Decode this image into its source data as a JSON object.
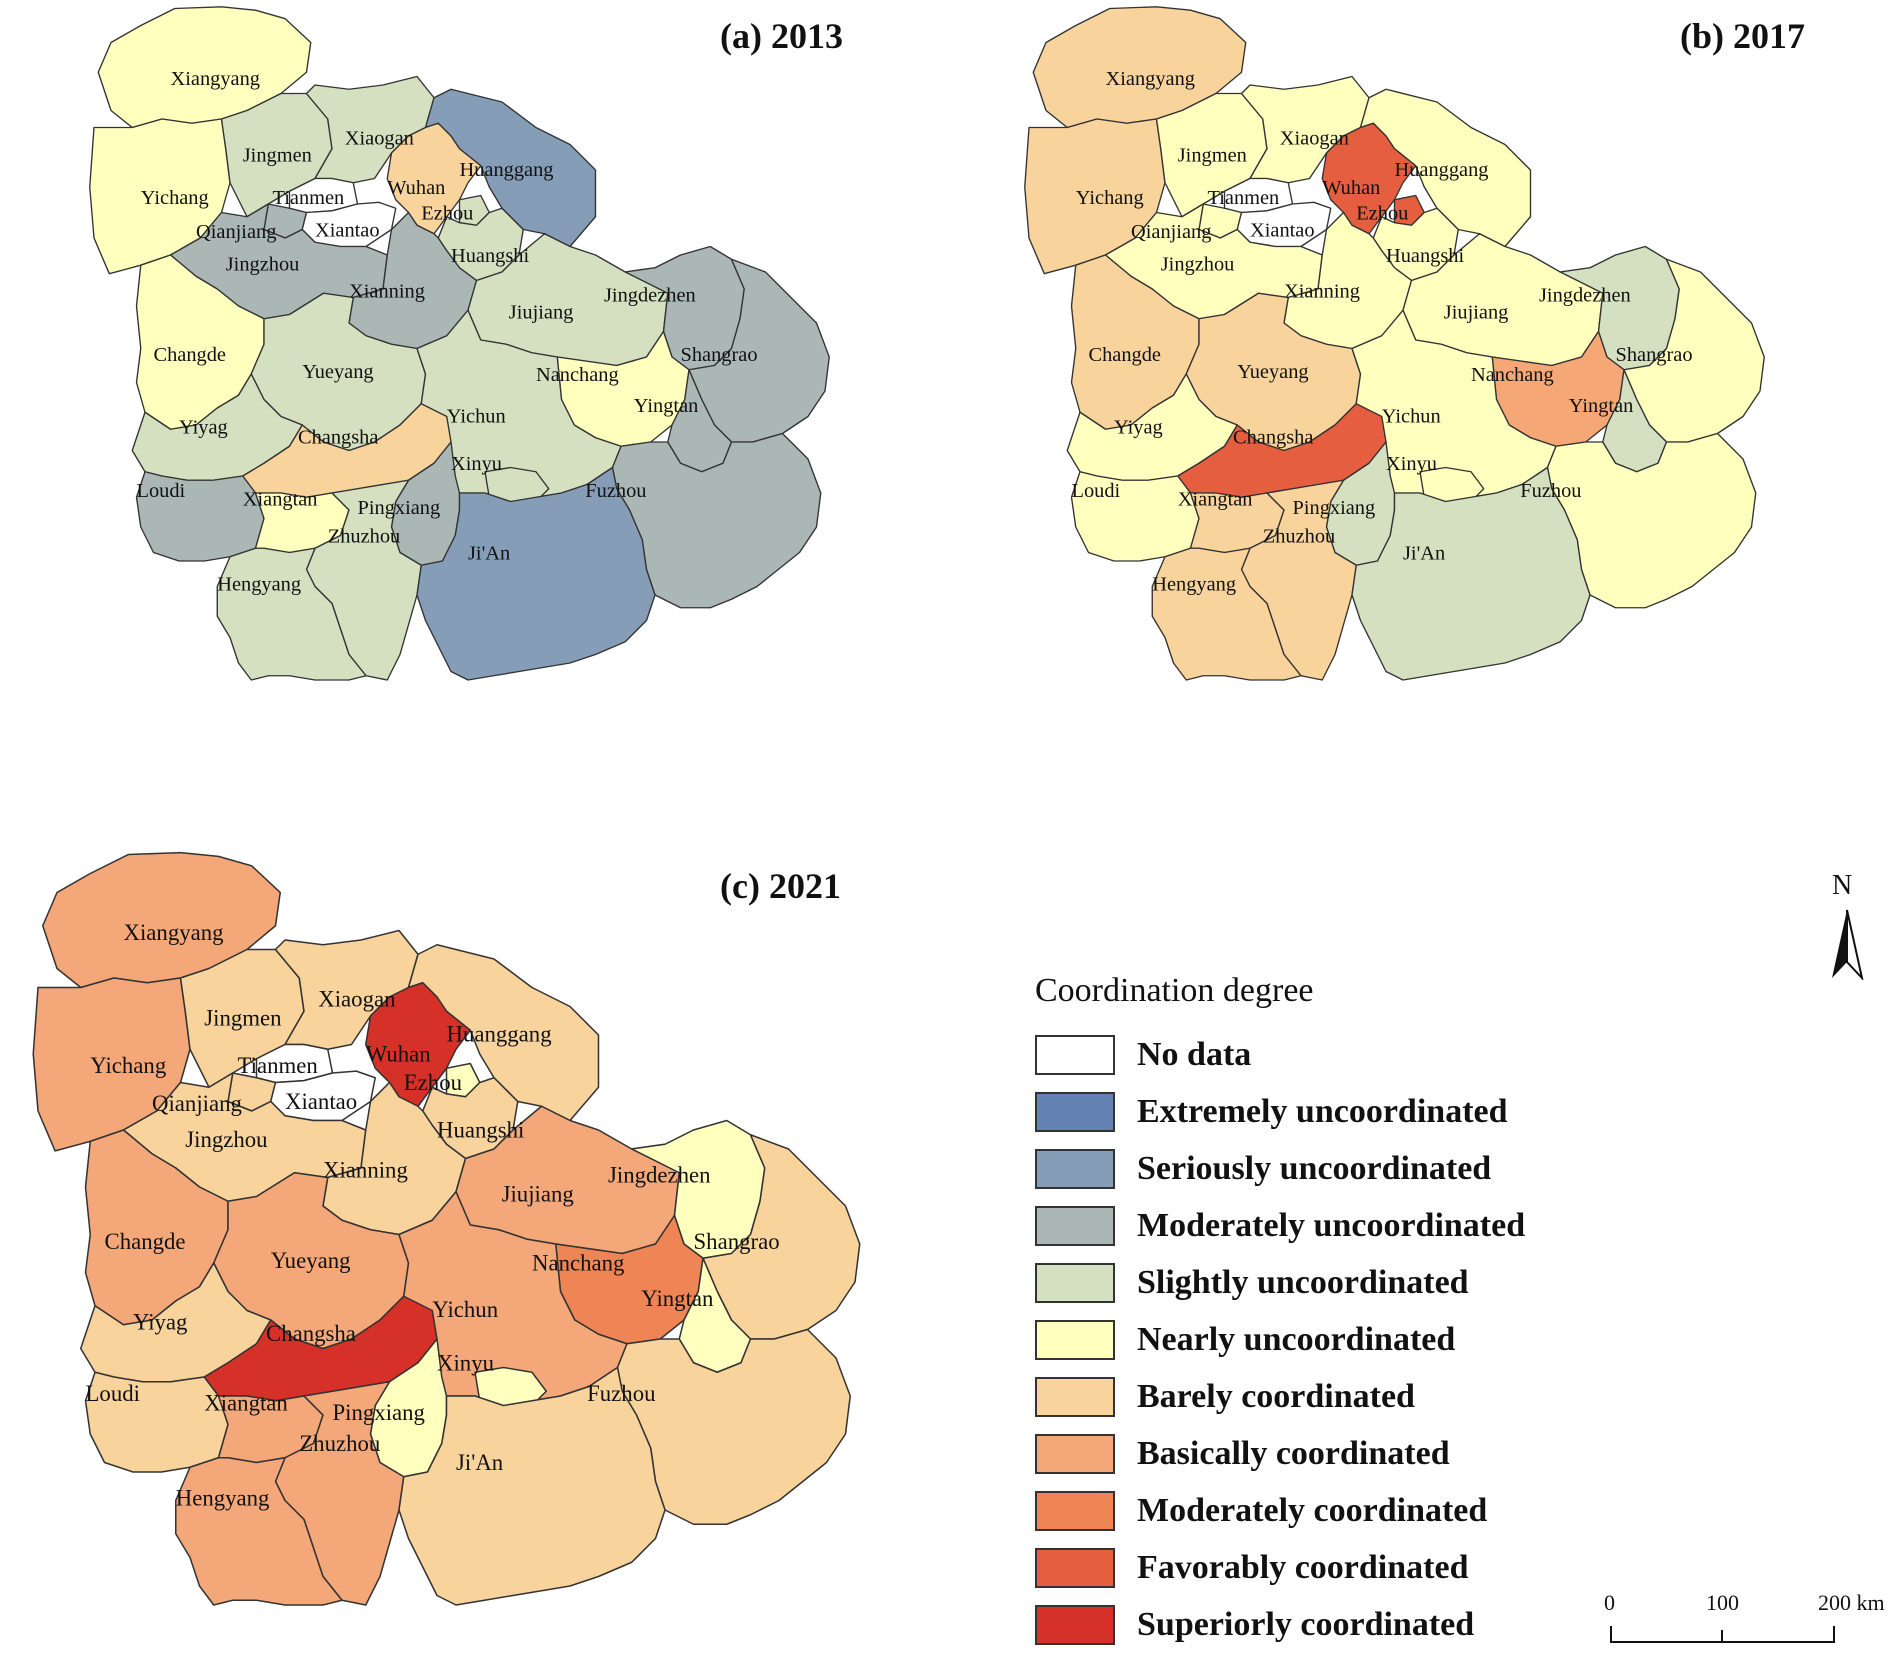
{
  "panels": [
    {
      "title": "(a) 2013",
      "fill": {
        "Xiangyang": "#ffffbe",
        "Yichang": "#ffffbe",
        "Jingmen": "#d4e0c0",
        "Xiaogan": "#d4e0c0",
        "Wuhan": "#f9d39c",
        "Huanggang": "#869db8",
        "Ezhou": "#d4e0c0",
        "Tianmen": "#ffffff",
        "Xiantao": "#ffffff",
        "Qianjiang": "#aab7b4",
        "Jingzhou": "#aab7b4",
        "Huangshi": "#d4e0c0",
        "Xianning": "#aab7b4",
        "Jiujiang": "#d4e0c0",
        "Jingdezhen": "#aab7b4",
        "Shangrao": "#aab7b4",
        "Changde": "#ffffbe",
        "Yueyang": "#d4e0c0",
        "Nanchang": "#ffffbe",
        "Yingtan": "#aab7b4",
        "Yichun": "#d4e0c0",
        "Yiyag": "#d4e0c0",
        "Changsha": "#f9d39c",
        "Xinyu": "#d4e0c0",
        "Loudi": "#aab7b4",
        "Xiangtan": "#ffffbe",
        "Pingxiang": "#aab7b4",
        "Fuzhou": "#aab7b4",
        "Zhuzhou": "#d4e0c0",
        "Ji'An": "#869db8",
        "Hengyang": "#d4e0c0"
      }
    },
    {
      "title": "(b) 2017",
      "fill": {
        "Xiangyang": "#f9d39c",
        "Yichang": "#f9d39c",
        "Jingmen": "#ffffbe",
        "Xiaogan": "#ffffbe",
        "Wuhan": "#e55e40",
        "Huanggang": "#ffffbe",
        "Ezhou": "#e55e40",
        "Tianmen": "#ffffff",
        "Xiantao": "#ffffff",
        "Qianjiang": "#ffffbe",
        "Jingzhou": "#ffffbe",
        "Huangshi": "#ffffbe",
        "Xianning": "#ffffbe",
        "Jiujiang": "#ffffbe",
        "Jingdezhen": "#d4e0c0",
        "Shangrao": "#ffffbe",
        "Changde": "#f9d39c",
        "Yueyang": "#f9d39c",
        "Nanchang": "#f5a775",
        "Yingtan": "#d4e0c0",
        "Yichun": "#ffffbe",
        "Yiyag": "#ffffbe",
        "Changsha": "#e55e40",
        "Xinyu": "#ffffbe",
        "Loudi": "#ffffbe",
        "Xiangtan": "#f9d39c",
        "Pingxiang": "#d4e0c0",
        "Fuzhou": "#ffffbe",
        "Zhuzhou": "#f9d39c",
        "Ji'An": "#d4e0c0",
        "Hengyang": "#f9d39c"
      }
    },
    {
      "title": "(c) 2021",
      "fill": {
        "Xiangyang": "#f4a87a",
        "Yichang": "#f4a87a",
        "Jingmen": "#f9d39c",
        "Xiaogan": "#f9d39c",
        "Wuhan": "#d63128",
        "Huanggang": "#f9d39c",
        "Ezhou": "#ffffbe",
        "Tianmen": "#ffffff",
        "Xiantao": "#ffffff",
        "Qianjiang": "#f9d39c",
        "Jingzhou": "#f9d39c",
        "Huangshi": "#f9d39c",
        "Xianning": "#f9d39c",
        "Jiujiang": "#f4a87a",
        "Jingdezhen": "#ffffbe",
        "Shangrao": "#f9d39c",
        "Changde": "#f4a87a",
        "Yueyang": "#f4a87a",
        "Nanchang": "#ef8555",
        "Yingtan": "#ffffbe",
        "Yichun": "#f4a87a",
        "Yiyag": "#f9d39c",
        "Changsha": "#d63128",
        "Xinyu": "#ffffbe",
        "Loudi": "#f9d39c",
        "Xiangtan": "#f4a87a",
        "Pingxiang": "#ffffbe",
        "Fuzhou": "#f9d39c",
        "Zhuzhou": "#f4a87a",
        "Ji'An": "#f9d39c",
        "Hengyang": "#f4a87a"
      }
    }
  ],
  "legend": {
    "title": "Coordination degree",
    "items": [
      {
        "label": "No data",
        "color": "#ffffff"
      },
      {
        "label": "Extremely uncoordinated",
        "color": "#6582b4"
      },
      {
        "label": "Seriously uncoordinated",
        "color": "#869db8"
      },
      {
        "label": "Moderately uncoordinated",
        "color": "#aab7b4"
      },
      {
        "label": "Slightly uncoordinated",
        "color": "#d4e0c0"
      },
      {
        "label": "Nearly uncoordinated",
        "color": "#ffffbe"
      },
      {
        "label": "Barely coordinated",
        "color": "#f9d39c"
      },
      {
        "label": "Basically coordinated",
        "color": "#f4a87a"
      },
      {
        "label": "Moderately coordinated",
        "color": "#ef8555"
      },
      {
        "label": "Favorably coordinated",
        "color": "#e55e40"
      },
      {
        "label": "Superiorly coordinated",
        "color": "#d63128"
      }
    ]
  },
  "north_arrow": {
    "label": "N"
  },
  "scale_bar": {
    "ticks": [
      "0",
      "100",
      "200 km"
    ]
  }
}
